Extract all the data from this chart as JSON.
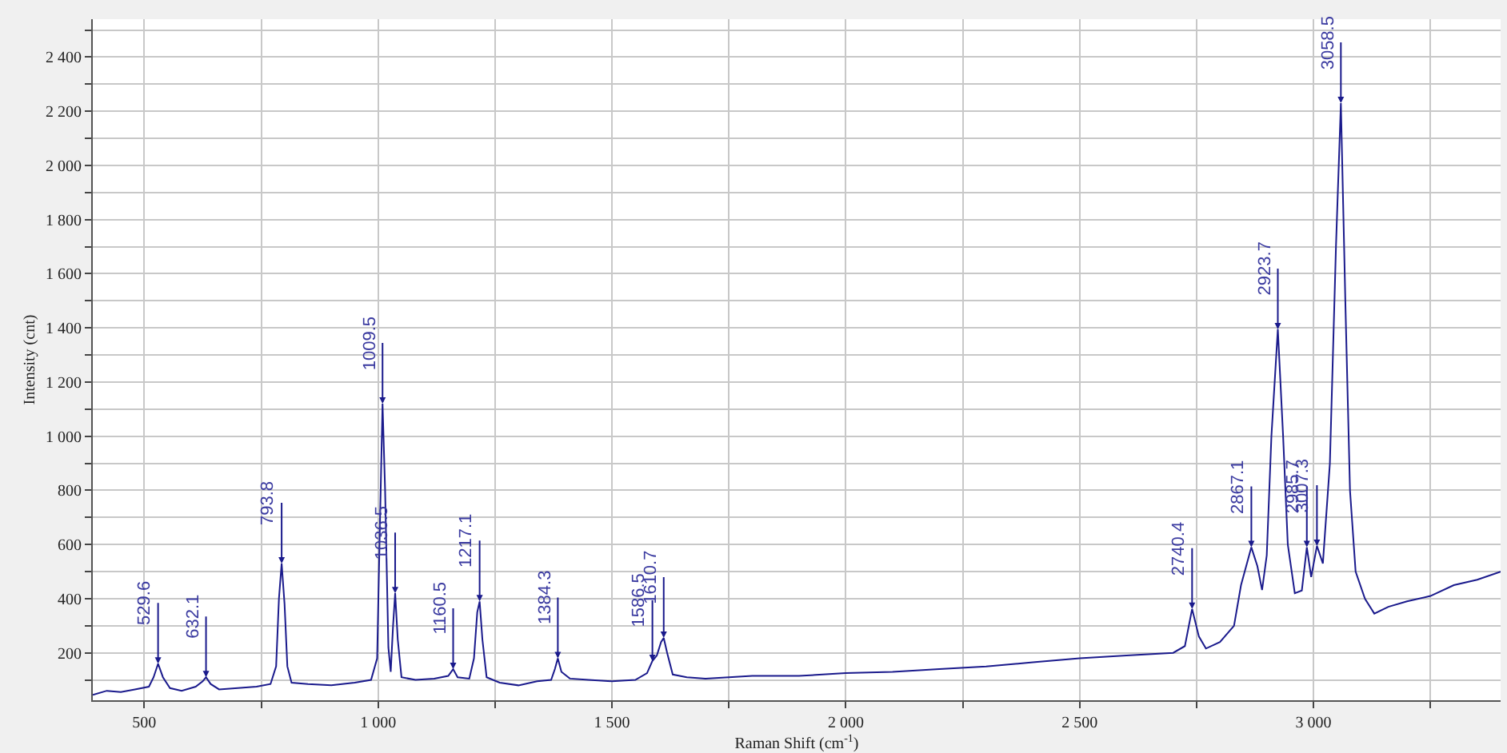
{
  "chart_data": {
    "type": "line",
    "xlabel": "Raman Shift (cm$^{-1}$)",
    "ylabel": "Intensity (cnt)",
    "xlim": [
      390,
      3400
    ],
    "ylim": [
      25,
      2540
    ],
    "xticks": [
      500,
      {
        "value": 750,
        "label": null
      },
      {
        "value": 1000,
        "label": "1 000"
      },
      {
        "value": 1250,
        "label": null
      },
      {
        "value": 1500,
        "label": "1 500"
      },
      {
        "value": 1750,
        "label": null
      },
      {
        "value": 2000,
        "label": "2 000"
      },
      {
        "value": 2250,
        "label": null
      },
      {
        "value": 2500,
        "label": "2 500"
      },
      {
        "value": 2750,
        "label": null
      },
      {
        "value": 3000,
        "label": "3 000"
      },
      {
        "value": 3250,
        "label": null
      }
    ],
    "yticks": [
      {
        "value": 100,
        "label": null
      },
      200,
      {
        "value": 300,
        "label": null
      },
      400,
      {
        "value": 500,
        "label": null
      },
      600,
      {
        "value": 700,
        "label": null
      },
      800,
      {
        "value": 900,
        "label": null
      },
      {
        "value": 1000,
        "label": "1 000"
      },
      {
        "value": 1100,
        "label": null
      },
      {
        "value": 1200,
        "label": "1 200"
      },
      {
        "value": 1300,
        "label": null
      },
      {
        "value": 1400,
        "label": "1 400"
      },
      {
        "value": 1500,
        "label": null
      },
      {
        "value": 1600,
        "label": "1 600"
      },
      {
        "value": 1700,
        "label": null
      },
      {
        "value": 1800,
        "label": "1 800"
      },
      {
        "value": 1900,
        "label": null
      },
      {
        "value": 2000,
        "label": "2 000"
      },
      {
        "value": 2100,
        "label": null
      },
      {
        "value": 2200,
        "label": "2 200"
      },
      {
        "value": 2300,
        "label": null
      },
      {
        "value": 2400,
        "label": "2 400"
      },
      {
        "value": 2500,
        "label": null
      }
    ],
    "grid": true,
    "marker": "none",
    "line_style": "solid",
    "series": [
      {
        "color": "#1a1a8c",
        "x": [
          390,
          420,
          450,
          480,
          510,
          520,
          529.6,
          540,
          555,
          580,
          610,
          625,
          632.1,
          642,
          660,
          700,
          740,
          770,
          782,
          788,
          793.8,
          800,
          806,
          815,
          850,
          900,
          950,
          985,
          998,
          1003,
          1009.5,
          1015,
          1022,
          1027,
          1032,
          1036.5,
          1042,
          1050,
          1080,
          1120,
          1150,
          1160.5,
          1170,
          1195,
          1205,
          1212,
          1217.1,
          1223,
          1232,
          1260,
          1300,
          1340,
          1370,
          1378,
          1384.3,
          1392,
          1410,
          1450,
          1500,
          1550,
          1575,
          1586.5,
          1596,
          1605,
          1610.7,
          1618,
          1630,
          1660,
          1700,
          1800,
          1900,
          2000,
          2100,
          2200,
          2300,
          2400,
          2500,
          2600,
          2700,
          2725,
          2740.4,
          2755,
          2770,
          2800,
          2830,
          2845,
          2867.1,
          2880,
          2890,
          2900,
          2910,
          2923.7,
          2935,
          2945,
          2960,
          2975,
          2985.7,
          2995,
          3007.3,
          3020,
          3035,
          3048,
          3058.5,
          3068,
          3078,
          3090,
          3110,
          3130,
          3160,
          3200,
          3250,
          3300,
          3350,
          3400
        ],
        "values": [
          45,
          60,
          55,
          65,
          75,
          110,
          160,
          110,
          70,
          60,
          75,
          95,
          110,
          85,
          65,
          70,
          75,
          85,
          150,
          400,
          530,
          380,
          150,
          90,
          85,
          80,
          90,
          100,
          180,
          600,
          1120,
          800,
          220,
          130,
          300,
          420,
          250,
          110,
          100,
          105,
          115,
          140,
          110,
          105,
          180,
          350,
          390,
          250,
          110,
          90,
          80,
          95,
          100,
          140,
          180,
          130,
          105,
          100,
          95,
          100,
          125,
          170,
          190,
          240,
          255,
          200,
          120,
          110,
          105,
          115,
          115,
          125,
          130,
          140,
          150,
          165,
          180,
          190,
          200,
          225,
          362,
          260,
          216,
          240,
          300,
          450,
          590,
          520,
          432,
          560,
          1000,
          1395,
          1000,
          600,
          420,
          430,
          590,
          480,
          595,
          530,
          900,
          1700,
          2230,
          1500,
          800,
          500,
          400,
          345,
          370,
          390,
          410,
          450,
          470,
          500
        ]
      }
    ],
    "annotations": [
      {
        "text": "529.6",
        "x": 529.6,
        "y": 160
      },
      {
        "text": "632.1",
        "x": 632.1,
        "y": 110
      },
      {
        "text": "793.8",
        "x": 793.8,
        "y": 530
      },
      {
        "text": "1009.5",
        "x": 1009.5,
        "y": 1120
      },
      {
        "text": "1036.5",
        "x": 1036.5,
        "y": 420
      },
      {
        "text": "1160.5",
        "x": 1160.5,
        "y": 140
      },
      {
        "text": "1217.1",
        "x": 1217.1,
        "y": 390
      },
      {
        "text": "1384.3",
        "x": 1384.3,
        "y": 180
      },
      {
        "text": "1586.5",
        "x": 1586.5,
        "y": 170
      },
      {
        "text": "1610.7",
        "x": 1610.7,
        "y": 255
      },
      {
        "text": "2740.4",
        "x": 2740.4,
        "y": 362
      },
      {
        "text": "2867.1",
        "x": 2867.1,
        "y": 590
      },
      {
        "text": "2923.7",
        "x": 2923.7,
        "y": 1395
      },
      {
        "text": "2985.7",
        "x": 2985.7,
        "y": 590
      },
      {
        "text": "3007.3",
        "x": 3007.3,
        "y": 595
      },
      {
        "text": "3058.5",
        "x": 3058.5,
        "y": 2230
      }
    ]
  }
}
